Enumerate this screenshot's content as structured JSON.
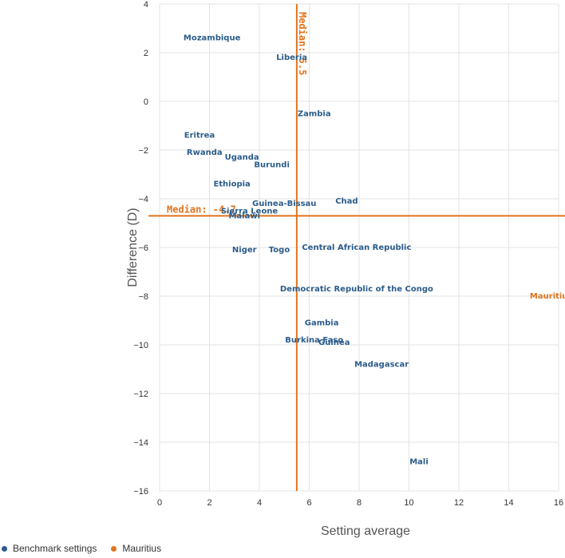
{
  "chart_data": {
    "type": "scatter",
    "xlabel": "Setting average",
    "ylabel": "Difference (D)",
    "xlim": [
      0,
      16
    ],
    "ylim": [
      -16,
      4
    ],
    "x_ticks": [
      "0",
      "2",
      "4",
      "6",
      "8",
      "10",
      "12",
      "14",
      "16"
    ],
    "y_ticks": [
      "4",
      "2",
      "0",
      "−2",
      "−4",
      "−6",
      "−8",
      "−10",
      "−12",
      "−14",
      "−16"
    ],
    "grid": true,
    "colors": {
      "benchmark": "#2b5c8a",
      "mauritius": "#e0731d",
      "median": "#e0731d"
    },
    "medians": {
      "x": {
        "value": 5.5,
        "label": "Median: 5.5"
      },
      "y": {
        "value": -4.7,
        "label": "Median: -4.7"
      }
    },
    "series": [
      {
        "name": "Benchmark settings",
        "points": [
          {
            "label": "Mozambique",
            "x": 2.1,
            "y": 2.6
          },
          {
            "label": "Liberia",
            "x": 5.3,
            "y": 1.8
          },
          {
            "label": "Zambia",
            "x": 6.2,
            "y": -0.5
          },
          {
            "label": "Eritrea",
            "x": 1.6,
            "y": -1.4
          },
          {
            "label": "Rwanda",
            "x": 1.8,
            "y": -2.1
          },
          {
            "label": "Uganda",
            "x": 3.3,
            "y": -2.3
          },
          {
            "label": "Burundi",
            "x": 4.5,
            "y": -2.6
          },
          {
            "label": "Ethiopia",
            "x": 2.9,
            "y": -3.4
          },
          {
            "label": "Chad",
            "x": 7.5,
            "y": -4.1
          },
          {
            "label": "Guinea-Bissau",
            "x": 5.0,
            "y": -4.2
          },
          {
            "label": "Sierra Leone",
            "x": 3.6,
            "y": -4.5
          },
          {
            "label": "Malawi",
            "x": 3.4,
            "y": -4.7
          },
          {
            "label": "Niger",
            "x": 3.4,
            "y": -6.1
          },
          {
            "label": "Togo",
            "x": 4.8,
            "y": -6.1
          },
          {
            "label": "Central African Republic",
            "x": 7.9,
            "y": -6.0
          },
          {
            "label": "Democratic Republic of the Congo",
            "x": 7.9,
            "y": -7.7
          },
          {
            "label": "Gambia",
            "x": 6.5,
            "y": -9.1
          },
          {
            "label": "Burkina Faso",
            "x": 6.2,
            "y": -9.8
          },
          {
            "label": "Guinea",
            "x": 7.0,
            "y": -9.9
          },
          {
            "label": "Madagascar",
            "x": 8.9,
            "y": -10.8
          },
          {
            "label": "Mali",
            "x": 10.4,
            "y": -14.8
          }
        ]
      },
      {
        "name": "Mauritius",
        "points": [
          {
            "label": "Mauritius",
            "x": 15.7,
            "y": -8.0
          }
        ]
      }
    ]
  }
}
